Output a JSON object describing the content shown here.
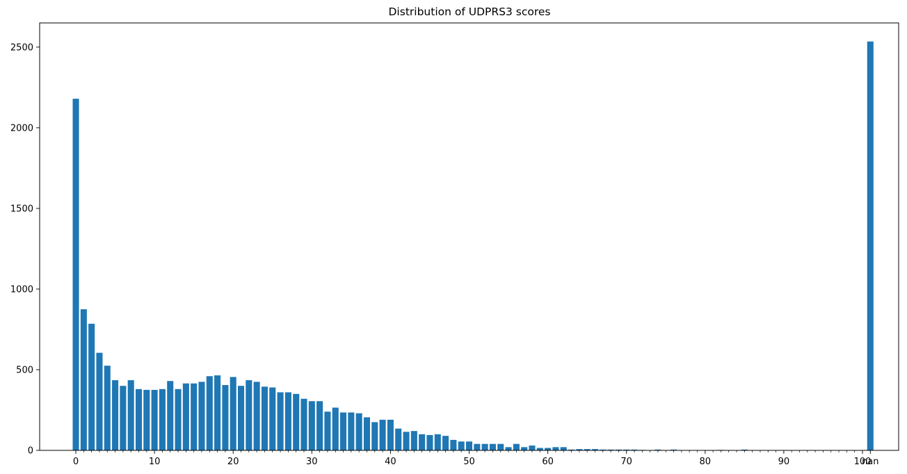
{
  "chart_data": {
    "type": "bar",
    "title": "Distribution of UDPRS3 scores",
    "xlabel": "",
    "ylabel": "",
    "bar_color": "#1f77b4",
    "ylim": [
      0,
      2650
    ],
    "yticks": [
      0,
      500,
      1000,
      1500,
      2000,
      2500
    ],
    "x_major_ticks": [
      "0",
      "10",
      "20",
      "30",
      "40",
      "50",
      "60",
      "70",
      "80",
      "90",
      "100",
      "nan"
    ],
    "categories": [
      "0",
      "1",
      "2",
      "3",
      "4",
      "5",
      "6",
      "7",
      "8",
      "9",
      "10",
      "11",
      "12",
      "13",
      "14",
      "15",
      "16",
      "17",
      "18",
      "19",
      "20",
      "21",
      "22",
      "23",
      "24",
      "25",
      "26",
      "27",
      "28",
      "29",
      "30",
      "31",
      "32",
      "33",
      "34",
      "35",
      "36",
      "37",
      "38",
      "39",
      "40",
      "41",
      "42",
      "43",
      "44",
      "45",
      "46",
      "47",
      "48",
      "49",
      "50",
      "51",
      "52",
      "53",
      "54",
      "55",
      "56",
      "57",
      "58",
      "59",
      "60",
      "61",
      "62",
      "63",
      "64",
      "65",
      "66",
      "67",
      "68",
      "69",
      "70",
      "71",
      "72",
      "73",
      "74",
      "75",
      "76",
      "77",
      "78",
      "79",
      "80",
      "81",
      "82",
      "83",
      "84",
      "85",
      "86",
      "87",
      "88",
      "89",
      "90",
      "91",
      "92",
      "93",
      "94",
      "95",
      "96",
      "97",
      "98",
      "99",
      "100",
      "nan"
    ],
    "values": [
      2180,
      875,
      785,
      605,
      525,
      435,
      400,
      435,
      380,
      375,
      375,
      380,
      430,
      380,
      415,
      415,
      425,
      460,
      465,
      405,
      455,
      400,
      435,
      425,
      395,
      390,
      360,
      360,
      350,
      320,
      305,
      305,
      240,
      265,
      235,
      235,
      230,
      205,
      175,
      190,
      190,
      135,
      115,
      120,
      100,
      95,
      100,
      90,
      65,
      55,
      55,
      40,
      40,
      40,
      40,
      20,
      40,
      20,
      30,
      15,
      15,
      20,
      20,
      5,
      8,
      8,
      8,
      5,
      5,
      5,
      5,
      5,
      3,
      2,
      5,
      2,
      5,
      2,
      2,
      2,
      2,
      2,
      3,
      2,
      2,
      5,
      2,
      2,
      2,
      2,
      2,
      2,
      2,
      2,
      2,
      2,
      2,
      2,
      2,
      2,
      2,
      2535
    ]
  }
}
